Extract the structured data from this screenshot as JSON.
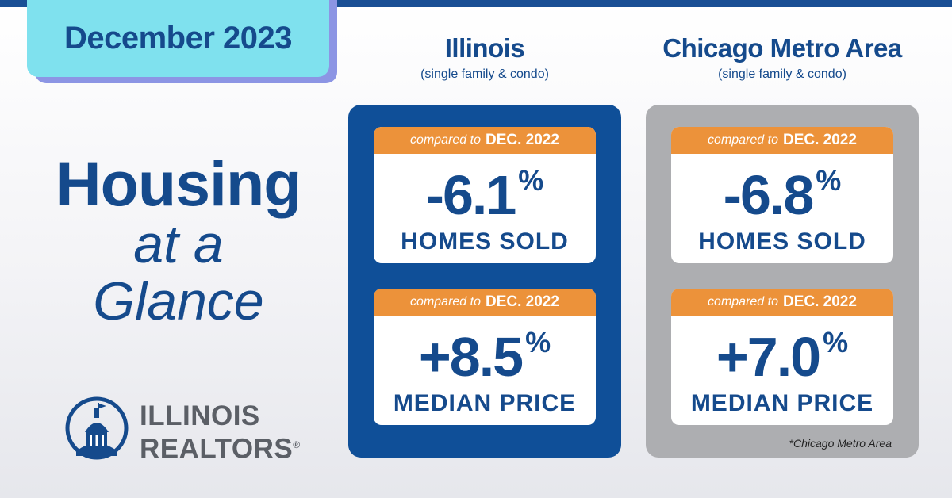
{
  "date": "December 2023",
  "headline": {
    "line1": "Housing",
    "line2": "at a",
    "line3": "Glance"
  },
  "logo": {
    "line1": "ILLINOIS",
    "line2": "REALTORS",
    "mark": "®"
  },
  "columns": [
    {
      "title": "Illinois",
      "subtitle": "(single family & condo)",
      "cards": [
        {
          "compared_text": "compared to",
          "compared_date": "DEC. 2022",
          "value": "-6.1",
          "unit": "%",
          "label": "HOMES SOLD"
        },
        {
          "compared_text": "compared to",
          "compared_date": "DEC. 2022",
          "value": "+8.5",
          "unit": "%",
          "label": "MEDIAN PRICE"
        }
      ]
    },
    {
      "title": "Chicago Metro Area",
      "subtitle": "(single family & condo)",
      "cards": [
        {
          "compared_text": "compared to",
          "compared_date": "DEC. 2022",
          "value": "-6.8",
          "unit": "%",
          "label": "HOMES SOLD"
        },
        {
          "compared_text": "compared to",
          "compared_date": "DEC. 2022",
          "value": "+7.0",
          "unit": "%",
          "label": "MEDIAN PRICE"
        }
      ],
      "footnote": "*Chicago Metro Area"
    }
  ],
  "colors": {
    "navy": "#154a8c",
    "panel_blue": "#0f4f98",
    "panel_gray": "#adaeb1",
    "orange": "#ec923a",
    "cyan": "#7fe1ee",
    "lavender": "#8c95e4"
  }
}
